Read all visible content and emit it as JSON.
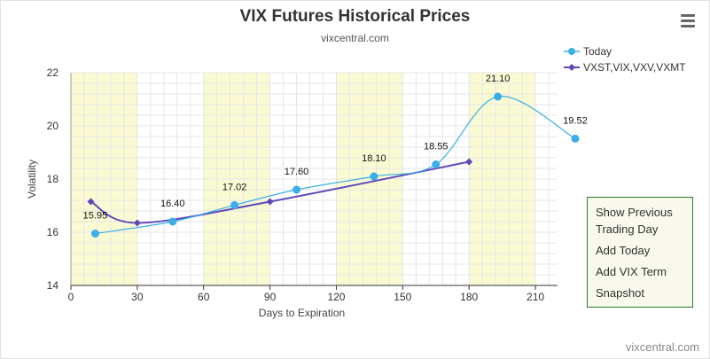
{
  "title": "VIX Futures Historical Prices",
  "subtitle": "vixcentral.com",
  "credit": "vixcentral.com",
  "menu_icon": "hamburger-icon",
  "legend": [
    {
      "label": "Today",
      "color": "#3aaee8",
      "marker": "circle"
    },
    {
      "label": "VXST,VIX,VXV,VXMT",
      "color": "#6046b8",
      "marker": "diamond"
    }
  ],
  "side_menu": [
    "Show Previous Trading Day",
    "Add Today",
    "Add VIX Term",
    "Snapshot"
  ],
  "chart_data": {
    "type": "line",
    "title": "VIX Futures Historical Prices",
    "subtitle": "vixcentral.com",
    "xlabel": "Days to Expiration",
    "ylabel": "Volatility",
    "xlim": [
      0,
      220
    ],
    "ylim": [
      14,
      22
    ],
    "x_ticks": [
      0,
      30,
      60,
      90,
      120,
      150,
      180,
      210
    ],
    "y_ticks": [
      14,
      16,
      18,
      20,
      22
    ],
    "bands": [
      [
        0,
        30
      ],
      [
        60,
        90
      ],
      [
        120,
        150
      ],
      [
        180,
        210
      ]
    ],
    "band_color": "#fafad2",
    "grid": true,
    "legend_position": "top-right",
    "series": [
      {
        "name": "Today",
        "color": "#3aaee8",
        "marker": "circle",
        "x": [
          11,
          46,
          74,
          102,
          137,
          165,
          193,
          228
        ],
        "y": [
          15.95,
          16.4,
          17.02,
          17.6,
          18.1,
          18.55,
          21.1,
          19.52
        ],
        "labels": [
          "15.95",
          "16.40",
          "17.02",
          "17.60",
          "18.10",
          "18.55",
          "21.10",
          "19.52"
        ]
      },
      {
        "name": "VXST,VIX,VXV,VXMT",
        "color": "#6046b8",
        "marker": "diamond",
        "x": [
          9,
          30,
          90,
          180
        ],
        "y": [
          17.15,
          16.35,
          17.15,
          18.65
        ]
      }
    ]
  }
}
